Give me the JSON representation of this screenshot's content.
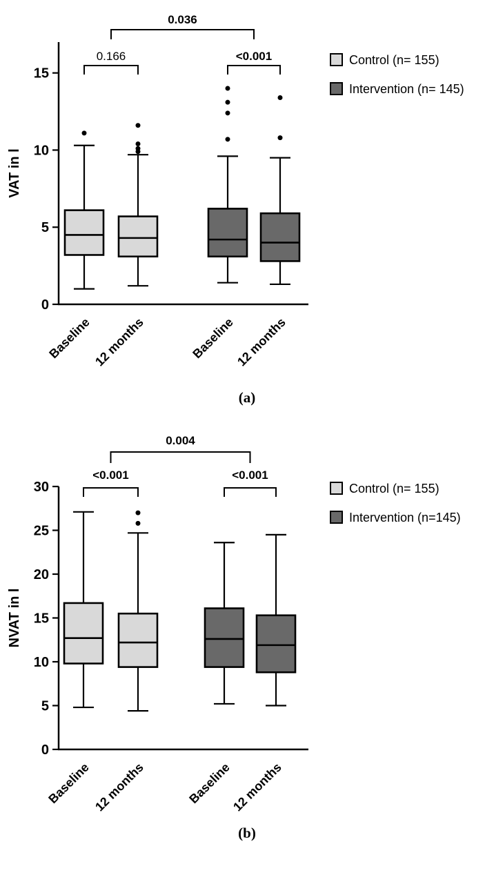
{
  "colors": {
    "control": "#d9d9d9",
    "intervention": "#696969",
    "line": "#000000"
  },
  "captions": {
    "a": "(a)",
    "b": "(b)"
  },
  "chart_data": [
    {
      "type": "boxplot",
      "id": "a",
      "ylabel": "VAT in l",
      "ylim": [
        0,
        17
      ],
      "yticks": [
        0,
        5,
        10,
        15
      ],
      "grid": false,
      "legend_position": "right",
      "groups": [
        {
          "category": "Baseline",
          "series": "Control",
          "whisker_low": 1.0,
          "q1": 3.2,
          "median": 4.5,
          "q3": 6.1,
          "whisker_high": 10.3,
          "outliers": [
            11.1
          ]
        },
        {
          "category": "12 months",
          "series": "Control",
          "whisker_low": 1.2,
          "q1": 3.1,
          "median": 4.3,
          "q3": 5.7,
          "whisker_high": 9.7,
          "outliers": [
            9.9,
            10.1,
            10.4,
            11.6
          ]
        },
        {
          "category": "Baseline",
          "series": "Intervention",
          "whisker_low": 1.4,
          "q1": 3.1,
          "median": 4.2,
          "q3": 6.2,
          "whisker_high": 9.6,
          "outliers": [
            10.7,
            12.4,
            13.1,
            14.0
          ]
        },
        {
          "category": "12 months",
          "series": "Intervention",
          "whisker_low": 1.3,
          "q1": 2.8,
          "median": 4.0,
          "q3": 5.9,
          "whisker_high": 9.5,
          "outliers": [
            10.8,
            13.4
          ]
        }
      ],
      "legend": [
        {
          "label": "Control (n= 155)",
          "series": "control"
        },
        {
          "label": "Intervention (n= 145)",
          "series": "intervention"
        }
      ],
      "annotations": [
        {
          "label": "0.166",
          "kind": "within",
          "groups": [
            0,
            1
          ],
          "bold": false
        },
        {
          "label": "<0.001",
          "kind": "within",
          "groups": [
            2,
            3
          ],
          "bold": true
        },
        {
          "label": "0.036",
          "kind": "between",
          "pairs": [
            [
              0,
              1
            ],
            [
              2,
              3
            ]
          ],
          "bold": true
        }
      ],
      "caption": "(a)"
    },
    {
      "type": "boxplot",
      "id": "b",
      "ylabel": "NVAT in l",
      "ylim": [
        0,
        30
      ],
      "yticks": [
        0,
        5,
        10,
        15,
        20,
        25,
        30
      ],
      "grid": false,
      "legend_position": "right",
      "groups": [
        {
          "category": "Baseline",
          "series": "Control",
          "whisker_low": 4.8,
          "q1": 9.8,
          "median": 12.7,
          "q3": 16.7,
          "whisker_high": 27.1,
          "outliers": []
        },
        {
          "category": "12 months",
          "series": "Control",
          "whisker_low": 4.4,
          "q1": 9.4,
          "median": 12.2,
          "q3": 15.5,
          "whisker_high": 24.7,
          "outliers": [
            25.8,
            27.0
          ]
        },
        {
          "category": "Baseline",
          "series": "Intervention",
          "whisker_low": 5.2,
          "q1": 9.4,
          "median": 12.6,
          "q3": 16.1,
          "whisker_high": 23.6,
          "outliers": []
        },
        {
          "category": "12 months",
          "series": "Intervention",
          "whisker_low": 5.0,
          "q1": 8.8,
          "median": 11.9,
          "q3": 15.3,
          "whisker_high": 24.5,
          "outliers": []
        }
      ],
      "legend": [
        {
          "label": "Control (n= 155)",
          "series": "control"
        },
        {
          "label": "Intervention (n=145)",
          "series": "intervention"
        }
      ],
      "annotations": [
        {
          "label": "<0.001",
          "kind": "within",
          "groups": [
            0,
            1
          ],
          "bold": true
        },
        {
          "label": "<0.001",
          "kind": "within",
          "groups": [
            2,
            3
          ],
          "bold": true
        },
        {
          "label": "0.004",
          "kind": "between",
          "pairs": [
            [
              0,
              1
            ],
            [
              2,
              3
            ]
          ],
          "bold": true
        }
      ],
      "caption": "(b)"
    }
  ]
}
